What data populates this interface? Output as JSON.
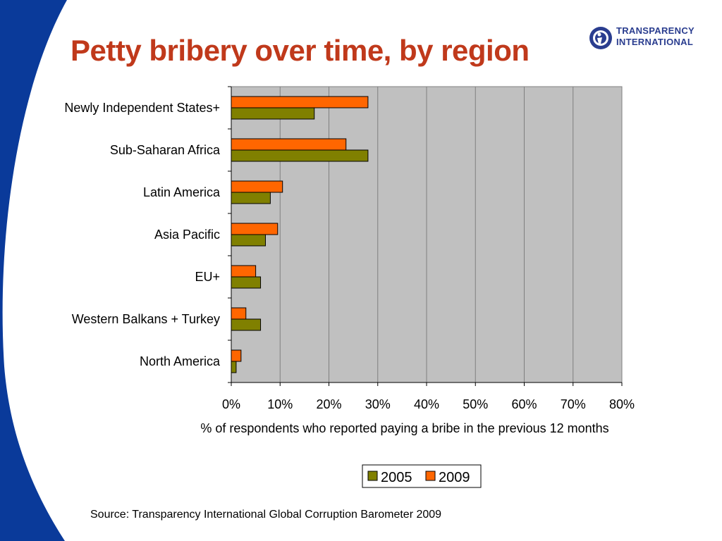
{
  "slide": {
    "title": "Petty bribery over time, by region",
    "source": "Source: Transparency International Global Corruption Barometer 2009"
  },
  "logo": {
    "line1": "TRANSPARENCY",
    "line2": "INTERNATIONAL",
    "icon": "ti-logo-icon",
    "color": "#2a3d8f"
  },
  "colors": {
    "title": "#c0391b",
    "swoosh": "#0a3a9a",
    "plot_background": "#c0c0c0",
    "series_2005": "#808000",
    "series_2009": "#ff6600"
  },
  "chart_data": {
    "type": "bar",
    "orientation": "horizontal",
    "categories": [
      "Newly Independent States+",
      "Sub-Saharan Africa",
      "Latin America",
      "Asia Pacific",
      "EU+",
      "Western Balkans + Turkey",
      "North America"
    ],
    "series": [
      {
        "name": "2005",
        "color": "#808000",
        "values": [
          17,
          28,
          8,
          7,
          6,
          6,
          1
        ]
      },
      {
        "name": "2009",
        "color": "#ff6600",
        "values": [
          28,
          23.5,
          10.5,
          9.5,
          5,
          3,
          2
        ]
      }
    ],
    "xlabel": "% of respondents who reported paying a bribe in the previous 12 months",
    "xlim": [
      0,
      80
    ],
    "xticks": [
      "0%",
      "10%",
      "20%",
      "30%",
      "40%",
      "50%",
      "60%",
      "70%",
      "80%"
    ],
    "xtick_values": [
      0,
      10,
      20,
      30,
      40,
      50,
      60,
      70,
      80
    ],
    "grid": true,
    "legend_position": "bottom-center",
    "legend": [
      "2005",
      "2009"
    ]
  }
}
